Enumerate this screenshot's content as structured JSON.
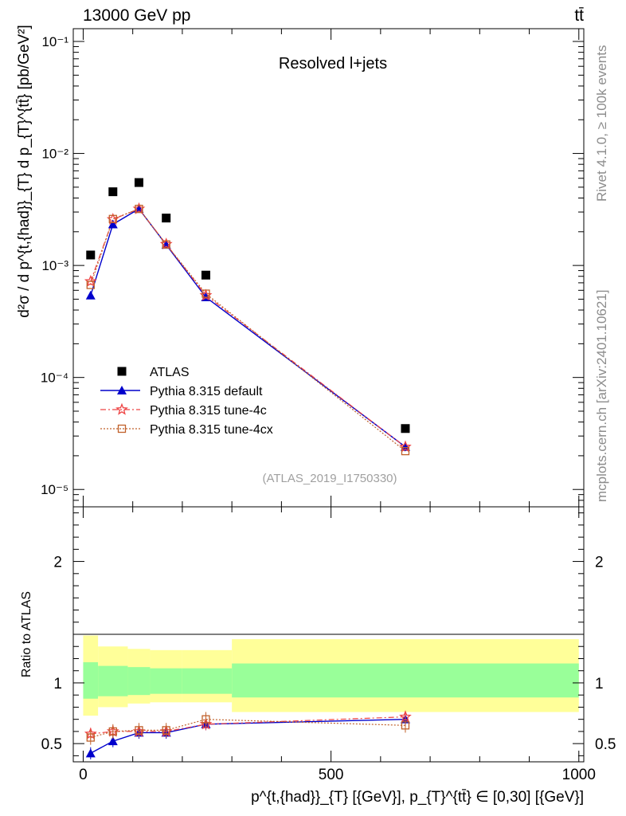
{
  "header": {
    "energy_label": "13000 GeV pp",
    "process_label": "tt̄"
  },
  "side_labels": {
    "rivet": "Rivet 4.1.0, ≥ 100k events",
    "mcplots": "mcplots.cern.ch [arXiv:2401.10621]"
  },
  "analysis_id": "(ATLAS_2019_I1750330)",
  "colors": {
    "atlas": "#000000",
    "default": "#0000cc",
    "tune4c": "#ee4444",
    "tune4cx": "#c0602a",
    "band_inner": "#99ff99",
    "band_outer": "#ffff99"
  },
  "chart_data": [
    {
      "type": "scatter",
      "panel": "main",
      "title": "Resolved l+jets",
      "ylabel": "d²σ / d p^{t,{had}}_{T} d p_{T}^{tt̄} [pb/GeV²]",
      "yscale": "log",
      "ylim": [
        7e-06,
        0.13
      ],
      "xlim": [
        -20,
        1010
      ],
      "y_tick_labels": [
        "10⁻¹",
        "10⁻²",
        "10⁻³",
        "10⁻⁴",
        "10⁻⁵"
      ],
      "x": [
        15,
        60,
        112.5,
        167.5,
        247.5,
        650
      ],
      "series": [
        {
          "name": "ATLAS",
          "marker": "square",
          "values": [
            0.00124,
            0.00455,
            0.0055,
            0.00265,
            0.00082,
            3.5e-05
          ]
        },
        {
          "name": "Pythia 8.315 default",
          "marker": "triangle",
          "values": [
            0.00054,
            0.00233,
            0.0032,
            0.00153,
            0.00052,
            2.4e-05
          ]
        },
        {
          "name": "Pythia 8.315 tune-4c",
          "marker": "star",
          "values": [
            0.00072,
            0.00258,
            0.0032,
            0.00155,
            0.00054,
            2.4e-05
          ]
        },
        {
          "name": "Pythia 8.315 tune-4cx",
          "marker": "open-square",
          "values": [
            0.00067,
            0.0026,
            0.0032,
            0.00154,
            0.00056,
            2.2e-05
          ]
        }
      ],
      "legend_position": "lower-left"
    },
    {
      "type": "line",
      "panel": "ratio",
      "ylabel": "Ratio to ATLAS",
      "xlabel": "p^{t,{had}}_{T} [{GeV}], p_{T}^{tt̄} ∈ [0,30] [{GeV}]",
      "ylim": [
        0.35,
        2.45
      ],
      "xlim": [
        -20,
        1010
      ],
      "x_tick_labels": [
        "0",
        "500",
        "1000"
      ],
      "y_tick_labels": [
        "0.5",
        "1",
        "2"
      ],
      "x": [
        15,
        60,
        112.5,
        167.5,
        247.5,
        650
      ],
      "series": [
        {
          "name": "Pythia 8.315 default",
          "values": [
            0.42,
            0.52,
            0.59,
            0.59,
            0.66,
            0.7
          ]
        },
        {
          "name": "Pythia 8.315 tune-4c",
          "values": [
            0.58,
            0.6,
            0.6,
            0.6,
            0.66,
            0.72
          ]
        },
        {
          "name": "Pythia 8.315 tune-4cx",
          "values": [
            0.55,
            0.6,
            0.61,
            0.61,
            0.7,
            0.65
          ]
        }
      ],
      "bands": {
        "bin_edges": [
          0,
          30,
          90,
          135,
          200,
          300,
          1000
        ],
        "inner": [
          [
            0.87,
            1.17
          ],
          [
            0.89,
            1.14
          ],
          [
            0.9,
            1.13
          ],
          [
            0.91,
            1.12
          ],
          [
            0.91,
            1.12
          ],
          [
            0.88,
            1.16
          ]
        ],
        "outer": [
          [
            0.73,
            1.39
          ],
          [
            0.8,
            1.3
          ],
          [
            0.83,
            1.28
          ],
          [
            0.84,
            1.27
          ],
          [
            0.84,
            1.27
          ],
          [
            0.76,
            1.36
          ]
        ]
      }
    }
  ]
}
